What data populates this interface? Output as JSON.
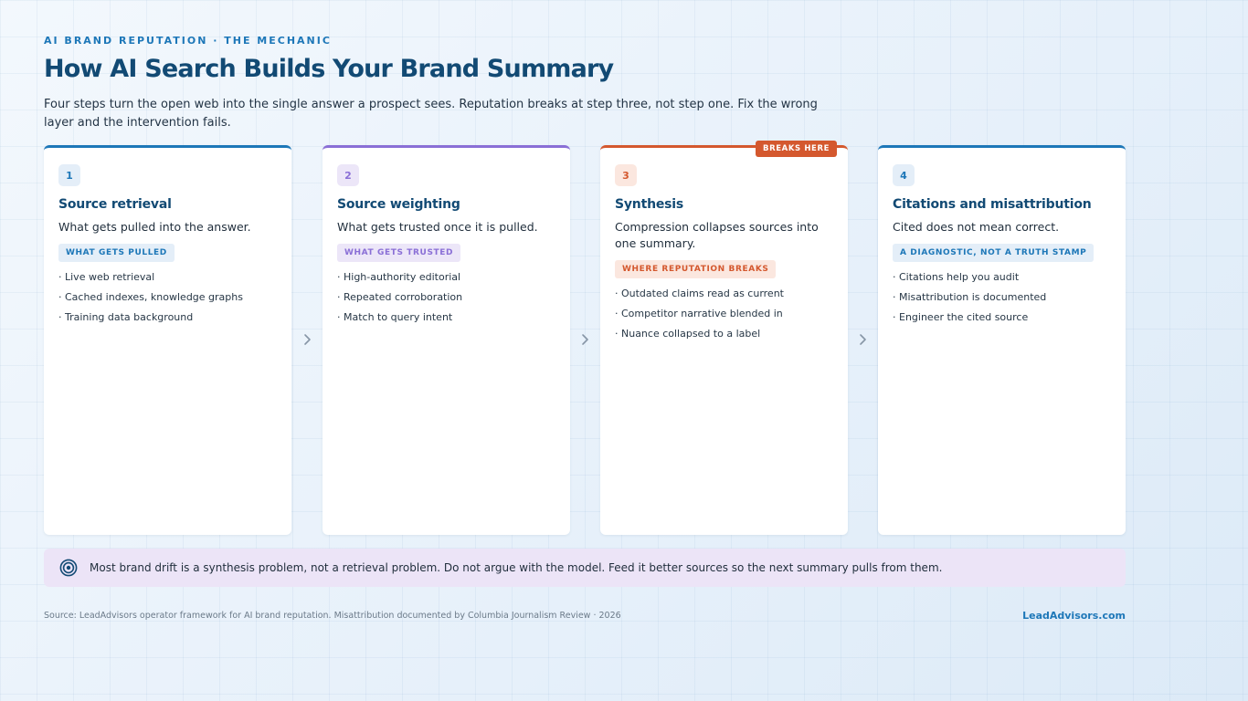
{
  "header": {
    "eyebrow": "AI BRAND REPUTATION · THE MECHANIC",
    "title": "How AI Search Builds Your Brand Summary",
    "subtitle": "Four steps turn the open web into the single answer a prospect sees. Reputation breaks at step three, not step one. Fix the wrong layer and the intervention fails."
  },
  "steps": [
    {
      "number": "1",
      "title": "Source retrieval",
      "description": "What gets pulled into the answer.",
      "tag": "WHAT GETS PULLED",
      "bullets": [
        "· Live web retrieval",
        "· Cached indexes, knowledge graphs",
        "· Training data background"
      ],
      "accent": "#1d77b8"
    },
    {
      "number": "2",
      "title": "Source weighting",
      "description": "What gets trusted once it is pulled.",
      "tag": "WHAT GETS TRUSTED",
      "bullets": [
        "· High-authority editorial",
        "· Repeated corroboration",
        "· Match to query intent"
      ],
      "accent": "#8a6fd6"
    },
    {
      "number": "3",
      "title": "Synthesis",
      "description": "Compression collapses sources into one summary.",
      "tag": "WHERE REPUTATION BREAKS",
      "badge": "BREAKS HERE",
      "bullets": [
        "· Outdated claims read as current",
        "· Competitor narrative blended in",
        "· Nuance collapsed to a label"
      ],
      "accent": "#d4582e"
    },
    {
      "number": "4",
      "title": "Citations and misattribution",
      "description": "Cited does not mean correct.",
      "tag": "A DIAGNOSTIC, NOT A TRUTH STAMP",
      "bullets": [
        "· Citations help you audit",
        "· Misattribution is documented",
        "· Engineer the cited source"
      ],
      "accent": "#1d77b8"
    }
  ],
  "callout": {
    "icon": "target-icon",
    "text": "Most brand drift is a synthesis problem, not a retrieval problem. Do not argue with the model. Feed it better sources so the next summary pulls from them."
  },
  "footer": {
    "source": "Source: LeadAdvisors operator framework for AI brand reputation. Misattribution documented by Columbia Journalism Review · 2026",
    "brand": "LeadAdvisors.com"
  },
  "colors": {
    "primary": "#1d77b8",
    "heading": "#124a74",
    "purple": "#8a6fd6",
    "warning": "#d4582e",
    "callout_bg": "#ece4f7"
  }
}
